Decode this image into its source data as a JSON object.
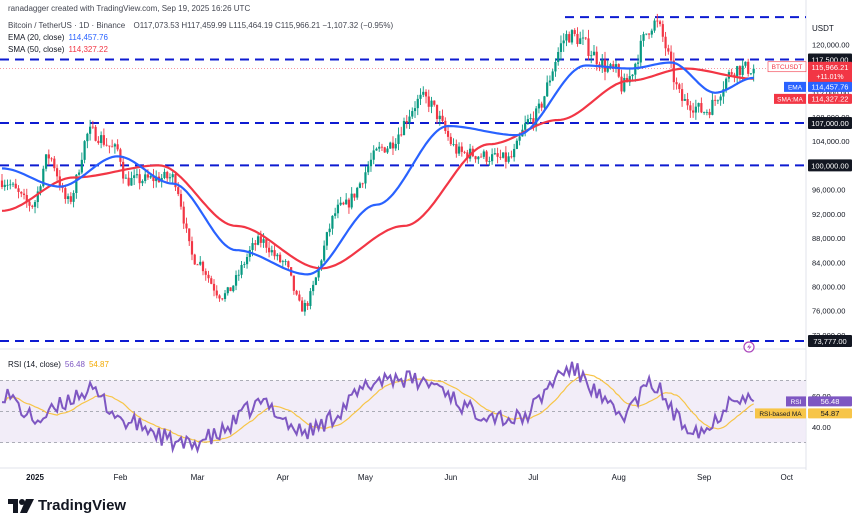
{
  "header": {
    "credit": "ranadagger created with TradingView.com, Sep 19, 2025 16:26 UTC",
    "symbol_line": "Bitcoin / TetherUS · 1D · Binance",
    "ohlc": "O117,073.53 H117,459.99 L115,464.19 C115,966.21 −1,107.32 (−0.95%)"
  },
  "indicators": {
    "ema": {
      "label": "EMA (20, close)",
      "value": "114,457.76",
      "color": "#2962ff"
    },
    "sma": {
      "label": "SMA (50, close)",
      "value": "114,327.22",
      "color": "#f23645"
    },
    "rsi": {
      "label": "RSI (14, close)",
      "value": "56.48",
      "ma": "54.87",
      "color": "#7e57c2",
      "ma_color": "#f7c548"
    }
  },
  "axis": {
    "currency": "USDT",
    "price_ticks": [
      "120,000.00",
      "116,000.00",
      "112,000.00",
      "108,000.00",
      "104,000.00",
      "96,000.00",
      "92,000.00",
      "88,000.00",
      "84,000.00",
      "80,000.00",
      "76,000.00",
      "72,000.00"
    ],
    "rsi_ticks": [
      "60.00",
      "40.00"
    ],
    "months": [
      "2025",
      "Feb",
      "Mar",
      "Apr",
      "May",
      "Jun",
      "Jul",
      "Aug",
      "Sep",
      "Oct"
    ]
  },
  "levels": [
    {
      "price": 117500,
      "label": "117,500.00"
    },
    {
      "price": 107000,
      "label": "107,000.00"
    },
    {
      "price": 100000,
      "label": "100,000.00"
    },
    {
      "price": 73777,
      "label": "73,777.00"
    },
    {
      "price": 124500,
      "label": ""
    }
  ],
  "price_tags": {
    "symbol": "BTCUSDT",
    "last": "115,966.21",
    "change": "+11.01%",
    "countdown": "07:33:25",
    "ema_tag": "EMA",
    "ema_value": "114,457.76",
    "sma_tag": "SMA:MA",
    "sma_value": "114,327.22",
    "rsi_tag": "RSI",
    "rsi_value": "56.48",
    "rsi_ma_tag": "RSI-based MA",
    "rsi_ma_value": "54.87"
  },
  "chart_data": {
    "type": "candlestick",
    "title": "Bitcoin / TetherUS · 1D · Binance",
    "ylim": [
      70000,
      126000
    ],
    "y_scale": "linear",
    "price_anchors": [
      {
        "date": "2024-12-20",
        "close": 97500
      },
      {
        "date": "2024-12-31",
        "close": 93500
      },
      {
        "date": "2025-01-06",
        "close": 101500
      },
      {
        "date": "2025-01-13",
        "close": 94000
      },
      {
        "date": "2025-01-21",
        "close": 105500
      },
      {
        "date": "2025-01-31",
        "close": 102500
      },
      {
        "date": "2025-02-03",
        "close": 97500
      },
      {
        "date": "2025-02-20",
        "close": 98000
      },
      {
        "date": "2025-02-28",
        "close": 84500
      },
      {
        "date": "2025-03-10",
        "close": 78500
      },
      {
        "date": "2025-03-24",
        "close": 87500
      },
      {
        "date": "2025-04-01",
        "close": 84000
      },
      {
        "date": "2025-04-08",
        "close": 76500
      },
      {
        "date": "2025-04-22",
        "close": 93000
      },
      {
        "date": "2025-05-08",
        "close": 103000
      },
      {
        "date": "2025-05-22",
        "close": 111000
      },
      {
        "date": "2025-06-05",
        "close": 102000
      },
      {
        "date": "2025-06-22",
        "close": 101000
      },
      {
        "date": "2025-06-30",
        "close": 107500
      },
      {
        "date": "2025-07-14",
        "close": 121500
      },
      {
        "date": "2025-07-31",
        "close": 115500
      },
      {
        "date": "2025-08-02",
        "close": 113000
      },
      {
        "date": "2025-08-14",
        "close": 123500
      },
      {
        "date": "2025-08-25",
        "close": 110500
      },
      {
        "date": "2025-09-01",
        "close": 109000
      },
      {
        "date": "2025-09-13",
        "close": 116000
      },
      {
        "date": "2025-09-19",
        "close": 115966
      }
    ],
    "ema20_anchors": [
      {
        "date": "2024-12-20",
        "value": 99500
      },
      {
        "date": "2025-01-10",
        "value": 96500
      },
      {
        "date": "2025-01-31",
        "value": 101500
      },
      {
        "date": "2025-02-20",
        "value": 97000
      },
      {
        "date": "2025-03-15",
        "value": 86000
      },
      {
        "date": "2025-04-10",
        "value": 82000
      },
      {
        "date": "2025-05-05",
        "value": 93500
      },
      {
        "date": "2025-05-31",
        "value": 106500
      },
      {
        "date": "2025-06-25",
        "value": 105000
      },
      {
        "date": "2025-07-20",
        "value": 116500
      },
      {
        "date": "2025-08-05",
        "value": 116000
      },
      {
        "date": "2025-08-20",
        "value": 117000
      },
      {
        "date": "2025-09-05",
        "value": 112000
      },
      {
        "date": "2025-09-19",
        "value": 114457.76
      }
    ],
    "sma50_anchors": [
      {
        "date": "2024-12-20",
        "value": 92500
      },
      {
        "date": "2025-01-15",
        "value": 98000
      },
      {
        "date": "2025-02-15",
        "value": 100000
      },
      {
        "date": "2025-03-15",
        "value": 90000
      },
      {
        "date": "2025-04-15",
        "value": 83000
      },
      {
        "date": "2025-05-15",
        "value": 90000
      },
      {
        "date": "2025-06-15",
        "value": 103500
      },
      {
        "date": "2025-07-10",
        "value": 107500
      },
      {
        "date": "2025-08-05",
        "value": 114000
      },
      {
        "date": "2025-08-25",
        "value": 116000
      },
      {
        "date": "2025-09-19",
        "value": 114327.22
      }
    ],
    "rsi_ylim": [
      15,
      85
    ],
    "rsi_bands": [
      70,
      50,
      30
    ],
    "rsi_anchors": [
      {
        "date": "2024-12-20",
        "value": 62
      },
      {
        "date": "2025-01-01",
        "value": 45
      },
      {
        "date": "2025-01-20",
        "value": 63
      },
      {
        "date": "2025-02-05",
        "value": 42
      },
      {
        "date": "2025-02-25",
        "value": 28
      },
      {
        "date": "2025-03-05",
        "value": 33
      },
      {
        "date": "2025-03-25",
        "value": 55
      },
      {
        "date": "2025-04-08",
        "value": 37
      },
      {
        "date": "2025-05-10",
        "value": 72
      },
      {
        "date": "2025-05-25",
        "value": 68
      },
      {
        "date": "2025-06-10",
        "value": 50
      },
      {
        "date": "2025-06-25",
        "value": 45
      },
      {
        "date": "2025-07-14",
        "value": 77
      },
      {
        "date": "2025-08-02",
        "value": 48
      },
      {
        "date": "2025-08-13",
        "value": 67
      },
      {
        "date": "2025-08-25",
        "value": 42
      },
      {
        "date": "2025-09-01",
        "value": 38
      },
      {
        "date": "2025-09-13",
        "value": 61
      },
      {
        "date": "2025-09-19",
        "value": 56.48
      }
    ],
    "date_range": [
      "2024-12-20",
      "2025-10-08"
    ],
    "last_bar_date": "2025-09-19"
  },
  "footer": {
    "brand": "TradingView"
  }
}
